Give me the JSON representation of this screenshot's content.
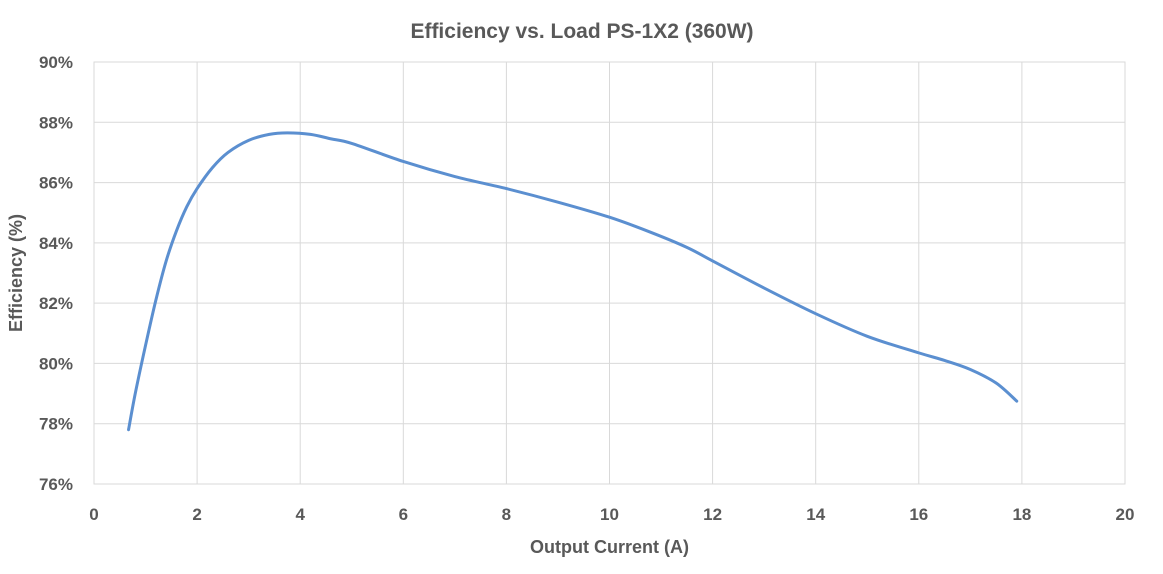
{
  "chart_data": {
    "type": "line",
    "title": "Efficiency vs. Load PS-1X2 (360W)",
    "xlabel": "Output Current (A)",
    "ylabel": "Efficiency (%)",
    "xlim": [
      0,
      20
    ],
    "ylim": [
      76,
      90
    ],
    "x_ticks": [
      0,
      2,
      4,
      6,
      8,
      10,
      12,
      14,
      16,
      18,
      20
    ],
    "y_ticks": [
      76,
      78,
      80,
      82,
      84,
      86,
      88,
      90
    ],
    "x_tick_labels": [
      "0",
      "2",
      "4",
      "6",
      "8",
      "10",
      "12",
      "14",
      "16",
      "18",
      "20"
    ],
    "y_tick_labels": [
      "76%",
      "78%",
      "80%",
      "82%",
      "84%",
      "86%",
      "88%",
      "90%"
    ],
    "grid": true,
    "legend": "none",
    "series_color": "#5b8fd0",
    "series": [
      {
        "x": [
          0.67,
          0.8,
          1.0,
          1.2,
          1.4,
          1.6,
          1.8,
          2.0,
          2.3,
          2.6,
          3.0,
          3.4,
          3.75,
          4.2,
          4.6,
          5.0,
          6.0,
          7.0,
          8.0,
          9.0,
          10.0,
          10.8,
          11.5,
          12.0,
          13.0,
          14.0,
          15.0,
          16.0,
          16.5,
          17.0,
          17.5,
          17.9
        ],
        "y": [
          77.8,
          79.0,
          80.6,
          82.1,
          83.4,
          84.4,
          85.2,
          85.8,
          86.5,
          87.0,
          87.4,
          87.6,
          87.65,
          87.6,
          87.45,
          87.3,
          86.7,
          86.2,
          85.8,
          85.35,
          84.85,
          84.35,
          83.85,
          83.4,
          82.5,
          81.65,
          80.9,
          80.35,
          80.1,
          79.8,
          79.35,
          78.75
        ]
      }
    ]
  }
}
